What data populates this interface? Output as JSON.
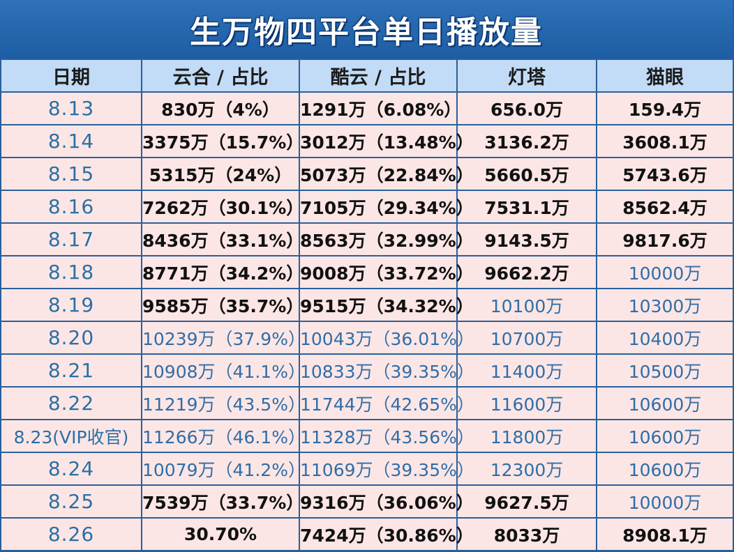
{
  "title": "生万物四平台单日播放量",
  "columns": [
    "日期",
    "云合 / 占比",
    "酷云 / 占比",
    "灯塔",
    "猫眼"
  ],
  "colors": {
    "header_bg": "#1f5fa4",
    "row_bg": "#fbe6e5",
    "blue_text": "#2f6da8",
    "black_text": "#111111"
  },
  "rows": [
    {
      "date": "8.13",
      "yunhe": "830万（4%）",
      "kuyun": "1291万（6.08%）",
      "dengta": "656.0万",
      "maoyan": "159.4万",
      "blue": [
        false,
        false,
        false,
        false
      ]
    },
    {
      "date": "8.14",
      "yunhe": "3375万（15.7%）",
      "kuyun": "3012万（13.48%）",
      "dengta": "3136.2万",
      "maoyan": "3608.1万",
      "blue": [
        false,
        false,
        false,
        false
      ]
    },
    {
      "date": "8.15",
      "yunhe": "5315万（24%）",
      "kuyun": "5073万（22.84%）",
      "dengta": "5660.5万",
      "maoyan": "5743.6万",
      "blue": [
        false,
        false,
        false,
        false
      ]
    },
    {
      "date": "8.16",
      "yunhe": "7262万（30.1%）",
      "kuyun": "7105万（29.34%）",
      "dengta": "7531.1万",
      "maoyan": "8562.4万",
      "blue": [
        false,
        false,
        false,
        false
      ]
    },
    {
      "date": "8.17",
      "yunhe": "8436万（33.1%）",
      "kuyun": "8563万（32.99%）",
      "dengta": "9143.5万",
      "maoyan": "9817.6万",
      "blue": [
        false,
        false,
        false,
        false
      ]
    },
    {
      "date": "8.18",
      "yunhe": "8771万（34.2%）",
      "kuyun": "9008万（33.72%）",
      "dengta": "9662.2万",
      "maoyan": "10000万",
      "blue": [
        false,
        false,
        false,
        true
      ]
    },
    {
      "date": "8.19",
      "yunhe": "9585万（35.7%）",
      "kuyun": "9515万（34.32%）",
      "dengta": "10100万",
      "maoyan": "10300万",
      "blue": [
        false,
        false,
        true,
        true
      ]
    },
    {
      "date": "8.20",
      "yunhe": "10239万（37.9%）",
      "kuyun": "10043万（36.01%）",
      "dengta": "10700万",
      "maoyan": "10400万",
      "blue": [
        true,
        true,
        true,
        true
      ]
    },
    {
      "date": "8.21",
      "yunhe": "10908万（41.1%）",
      "kuyun": "10833万（39.35%）",
      "dengta": "11400万",
      "maoyan": "10500万",
      "blue": [
        true,
        true,
        true,
        true
      ]
    },
    {
      "date": "8.22",
      "yunhe": "11219万（43.5%）",
      "kuyun": "11744万（42.65%）",
      "dengta": "11600万",
      "maoyan": "10600万",
      "blue": [
        true,
        true,
        true,
        true
      ]
    },
    {
      "date": "8.23(VIP收官)",
      "yunhe": "11266万（46.1%）",
      "kuyun": "11328万（43.56%）",
      "dengta": "11800万",
      "maoyan": "10600万",
      "blue": [
        true,
        true,
        true,
        true
      ]
    },
    {
      "date": "8.24",
      "yunhe": "10079万（41.2%）",
      "kuyun": "11069万（39.35%）",
      "dengta": "12300万",
      "maoyan": "10600万",
      "blue": [
        true,
        true,
        true,
        true
      ]
    },
    {
      "date": "8.25",
      "yunhe": "7539万（33.7%）",
      "kuyun": "9316万（36.06%）",
      "dengta": "9627.5万",
      "maoyan": "10000万",
      "blue": [
        false,
        false,
        false,
        true
      ]
    },
    {
      "date": "8.26",
      "yunhe": "30.70%",
      "kuyun": "7424万（30.86%）",
      "dengta": "8033万",
      "maoyan": "8908.1万",
      "blue": [
        false,
        false,
        false,
        false
      ]
    }
  ]
}
